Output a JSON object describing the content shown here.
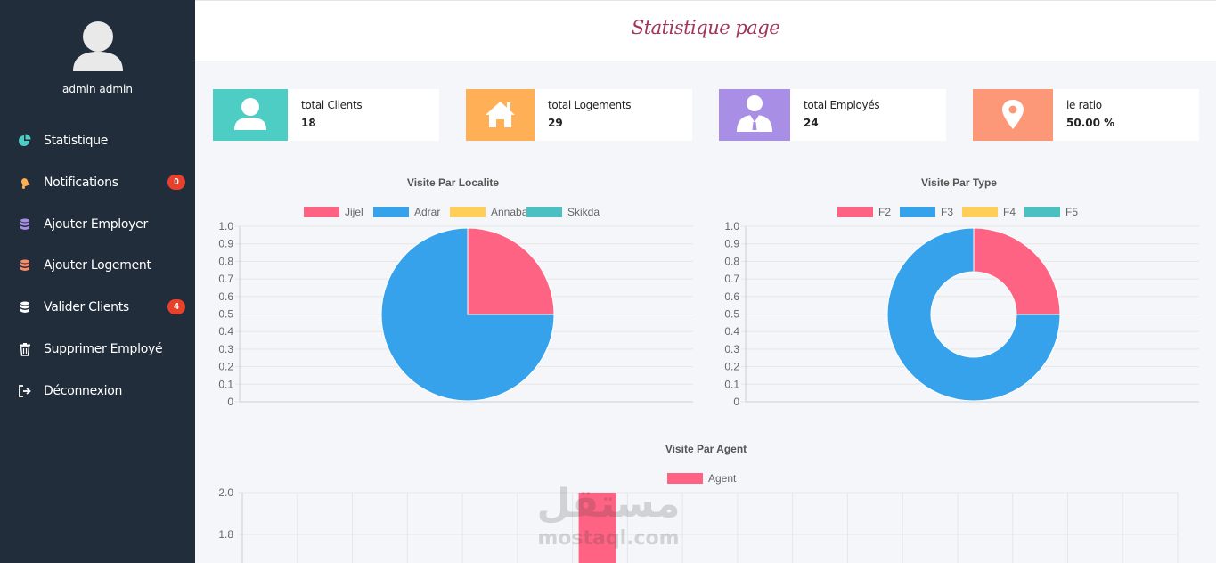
{
  "header": {
    "title": "Statistique page"
  },
  "sidebar": {
    "user_name": "admin admin",
    "items": [
      {
        "label": "Statistique",
        "icon": "pie-chart-icon",
        "color": "#4ecdc4"
      },
      {
        "label": "Notifications",
        "icon": "bell-icon",
        "color": "#ffb057",
        "badge": "0"
      },
      {
        "label": "Ajouter Employer",
        "icon": "database-icon",
        "color": "#a98ee6"
      },
      {
        "label": "Ajouter Logement",
        "icon": "database-icon",
        "color": "#fc8d6c"
      },
      {
        "label": "Valider Clients",
        "icon": "database-icon",
        "color": "#ffffff",
        "badge": "4"
      },
      {
        "label": "Supprimer Employé",
        "icon": "trash-icon",
        "color": "#ffffff"
      },
      {
        "label": "Déconnexion",
        "icon": "sign-out-icon",
        "color": "#ffffff"
      }
    ]
  },
  "cards": [
    {
      "label": "total Clients",
      "value": "18",
      "icon": "user-icon",
      "color": "#4ecdc4"
    },
    {
      "label": "total Logements",
      "value": "29",
      "icon": "home-icon",
      "color": "#ffb057"
    },
    {
      "label": "total Employés",
      "value": "24",
      "icon": "employee-icon",
      "color": "#a98ee6"
    },
    {
      "label": "le ratio",
      "value": "50.00 %",
      "icon": "map-marker-icon",
      "color": "#fc9878"
    }
  ],
  "chart_data": [
    {
      "type": "pie",
      "title": "Visite Par Localite",
      "categories": [
        "Jijel",
        "Adrar",
        "Annaba",
        "Skikda"
      ],
      "values": [
        1,
        3,
        0,
        0
      ],
      "colors": [
        "#ff6384",
        "#36a2eb",
        "#ffce56",
        "#4bc0c0"
      ],
      "y_ticks": [
        "1.0",
        "0.9",
        "0.8",
        "0.7",
        "0.6",
        "0.5",
        "0.4",
        "0.3",
        "0.2",
        "0.1",
        "0"
      ],
      "legend": "top"
    },
    {
      "type": "pie",
      "subtype": "doughnut",
      "title": "Visite Par Type",
      "categories": [
        "F2",
        "F3",
        "F4",
        "F5"
      ],
      "values": [
        1,
        3,
        0,
        0
      ],
      "colors": [
        "#ff6384",
        "#36a2eb",
        "#ffce56",
        "#4bc0c0"
      ],
      "y_ticks": [
        "1.0",
        "0.9",
        "0.8",
        "0.7",
        "0.6",
        "0.5",
        "0.4",
        "0.3",
        "0.2",
        "0.1",
        "0"
      ],
      "legend": "top"
    },
    {
      "type": "bar",
      "title": "Visite Par Agent",
      "series": [
        {
          "name": "Agent",
          "color": "#ff6384"
        }
      ],
      "y_ticks": [
        "2.0",
        "1.8"
      ],
      "bar_value": 2,
      "ylim_visible": [
        1.8,
        2.0
      ],
      "legend": "top"
    }
  ],
  "watermark": {
    "arabic": "مستقل",
    "latin": "mostaql.com"
  }
}
